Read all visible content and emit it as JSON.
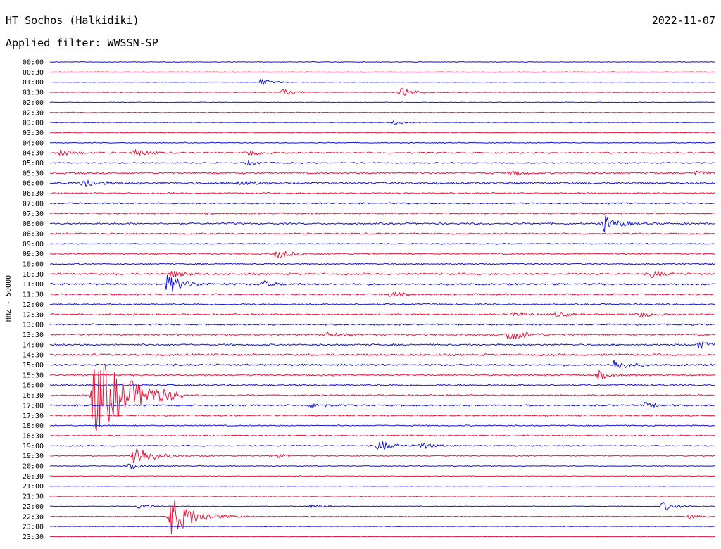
{
  "header": {
    "station": "HT Sochos (Halkidiki)",
    "date": "2022-11-07",
    "filter": "Applied filter: WWSSN-SP"
  },
  "chart_data": {
    "type": "line",
    "title": "HT Sochos (Halkidiki)",
    "subtitle": "Applied filter: WWSSN-SP",
    "ylabel": "HHZ - 50000",
    "xlabel": "",
    "grid": false,
    "row_labels": [
      "00:00",
      "00:30",
      "01:00",
      "01:30",
      "02:00",
      "02:30",
      "03:00",
      "03:30",
      "04:00",
      "04:30",
      "05:00",
      "05:30",
      "06:00",
      "06:30",
      "07:00",
      "07:30",
      "08:00",
      "08:30",
      "09:00",
      "09:30",
      "10:00",
      "10:30",
      "11:00",
      "11:30",
      "12:00",
      "12:30",
      "13:00",
      "13:30",
      "14:00",
      "14:30",
      "15:00",
      "15:30",
      "16:00",
      "16:30",
      "17:00",
      "17:30",
      "18:00",
      "18:30",
      "19:00",
      "19:30",
      "20:00",
      "20:30",
      "21:00",
      "21:30",
      "22:00",
      "22:30",
      "23:00",
      "23:30"
    ],
    "row_minutes": 30,
    "trace_colors": [
      "#1414d2",
      "#e8143c"
    ],
    "noise_level": [
      0.4,
      0.4,
      0.3,
      0.4,
      0.4,
      0.4,
      0.3,
      0.5,
      0.5,
      0.9,
      0.7,
      1.0,
      1.2,
      0.8,
      0.8,
      0.9,
      1.0,
      0.9,
      0.6,
      0.9,
      0.8,
      1.1,
      1.1,
      0.9,
      0.9,
      0.9,
      0.9,
      1.1,
      1.0,
      1.2,
      1.1,
      1.0,
      1.0,
      0.8,
      0.9,
      0.8,
      0.7,
      0.7,
      0.7,
      0.6,
      0.5,
      0.4,
      0.3,
      0.4,
      0.4,
      0.4,
      0.3,
      0.3
    ],
    "events": [
      {
        "row": 2,
        "minute": 9.5,
        "amp": 5
      },
      {
        "row": 3,
        "minute": 10.5,
        "amp": 5
      },
      {
        "row": 3,
        "minute": 15.8,
        "amp": 8
      },
      {
        "row": 6,
        "minute": 15.5,
        "amp": 3
      },
      {
        "row": 9,
        "minute": 0.5,
        "amp": 5
      },
      {
        "row": 9,
        "minute": 3.8,
        "amp": 6
      },
      {
        "row": 9,
        "minute": 8.9,
        "amp": 4
      },
      {
        "row": 10,
        "minute": 8.9,
        "amp": 3
      },
      {
        "row": 11,
        "minute": 20.8,
        "amp": 4
      },
      {
        "row": 11,
        "minute": 29.0,
        "amp": 4
      },
      {
        "row": 12,
        "minute": 1.5,
        "amp": 7
      },
      {
        "row": 12,
        "minute": 8.5,
        "amp": 5
      },
      {
        "row": 16,
        "minute": 24.9,
        "amp": 12
      },
      {
        "row": 19,
        "minute": 10.2,
        "amp": 7
      },
      {
        "row": 21,
        "minute": 5.5,
        "amp": 5
      },
      {
        "row": 21,
        "minute": 27.1,
        "amp": 5
      },
      {
        "row": 22,
        "minute": 5.3,
        "amp": 14
      },
      {
        "row": 22,
        "minute": 9.5,
        "amp": 6
      },
      {
        "row": 23,
        "minute": 15.3,
        "amp": 4
      },
      {
        "row": 25,
        "minute": 20.8,
        "amp": 5
      },
      {
        "row": 25,
        "minute": 22.8,
        "amp": 4
      },
      {
        "row": 25,
        "minute": 26.5,
        "amp": 5
      },
      {
        "row": 27,
        "minute": 12.4,
        "amp": 4
      },
      {
        "row": 27,
        "minute": 20.6,
        "amp": 11
      },
      {
        "row": 28,
        "minute": 29.2,
        "amp": 5
      },
      {
        "row": 30,
        "minute": 25.4,
        "amp": 8
      },
      {
        "row": 31,
        "minute": 24.7,
        "amp": 6
      },
      {
        "row": 33,
        "minute": 1.95,
        "amp": 60
      },
      {
        "row": 34,
        "minute": 11.8,
        "amp": 5
      },
      {
        "row": 34,
        "minute": 26.8,
        "amp": 4
      },
      {
        "row": 38,
        "minute": 14.8,
        "amp": 8
      },
      {
        "row": 38,
        "minute": 16.7,
        "amp": 5
      },
      {
        "row": 39,
        "minute": 3.75,
        "amp": 18
      },
      {
        "row": 39,
        "minute": 10.0,
        "amp": 4
      },
      {
        "row": 40,
        "minute": 3.6,
        "amp": 5
      },
      {
        "row": 44,
        "minute": 4.0,
        "amp": 4
      },
      {
        "row": 44,
        "minute": 11.8,
        "amp": 4
      },
      {
        "row": 44,
        "minute": 27.6,
        "amp": 7
      },
      {
        "row": 45,
        "minute": 5.4,
        "amp": 30
      },
      {
        "row": 45,
        "minute": 28.8,
        "amp": 3
      }
    ]
  }
}
